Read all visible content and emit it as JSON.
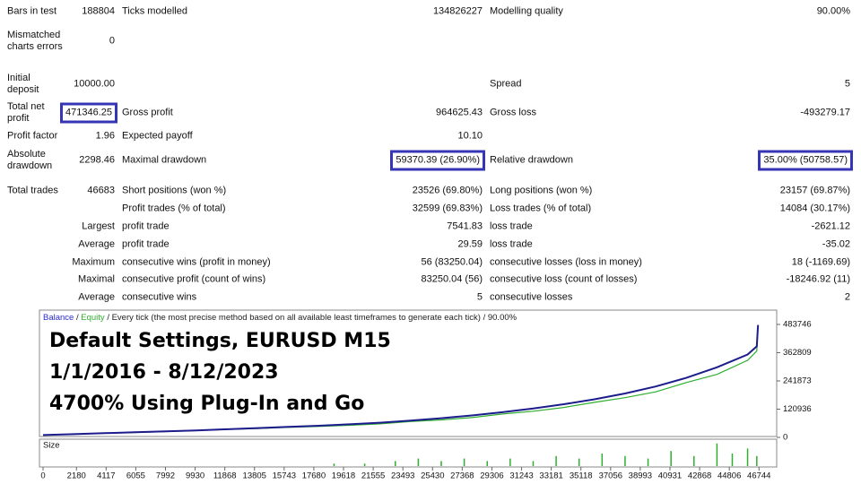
{
  "stats": {
    "rows": [
      {
        "a_label": "Bars in test",
        "a_value": "188804",
        "b_label": "Ticks modelled",
        "b_value": "134826227",
        "c_label": "Modelling quality",
        "c_value": "90.00%"
      },
      {
        "a_label": "Mismatched charts errors",
        "a_value": "0"
      },
      {
        "a_label": "Initial deposit",
        "a_value": "10000.00",
        "c_label": "Spread",
        "c_value": "5"
      },
      {
        "a_label": "Total net profit",
        "a_value": "471346.25",
        "b_label": "Gross profit",
        "b_value": "964625.43",
        "c_label": "Gross loss",
        "c_value": "-493279.17",
        "boxed": [
          "a_value"
        ]
      },
      {
        "a_label": "Profit factor",
        "a_value": "1.96",
        "b_label": "Expected payoff",
        "b_value": "10.10"
      },
      {
        "a_label": "Absolute drawdown",
        "a_value": "2298.46",
        "b_label": "Maximal drawdown",
        "b_value": "59370.39 (26.90%)",
        "c_label": "Relative drawdown",
        "c_value": "35.00% (50758.57)",
        "boxed": [
          "b_value",
          "c_value"
        ]
      },
      {
        "a_label": "Total trades",
        "a_value": "46683",
        "b_label": "Short positions (won %)",
        "b_value": "23526 (69.80%)",
        "c_label": "Long positions (won %)",
        "c_value": "23157 (69.87%)"
      },
      {
        "b_label": "Profit trades (% of total)",
        "b_value": "32599 (69.83%)",
        "c_label": "Loss trades (% of total)",
        "c_value": "14084 (30.17%)"
      },
      {
        "a_label": "Largest",
        "b_label": "profit trade",
        "b_value": "7541.83",
        "c_label": "loss trade",
        "c_value": "-2621.12"
      },
      {
        "a_label": "Average",
        "b_label": "profit trade",
        "b_value": "29.59",
        "c_label": "loss trade",
        "c_value": "-35.02"
      },
      {
        "a_label": "Maximum",
        "b_label": "consecutive wins (profit in money)",
        "b_value": "56 (83250.04)",
        "c_label": "consecutive losses (loss in money)",
        "c_value": "18 (-1169.69)"
      },
      {
        "a_label": "Maximal",
        "b_label": "consecutive profit (count of wins)",
        "b_value": "83250.04 (56)",
        "c_label": "consecutive loss (count of losses)",
        "c_value": "-18246.92 (11)"
      },
      {
        "a_label": "Average",
        "b_label": "consecutive wins",
        "b_value": "5",
        "c_label": "consecutive losses",
        "c_value": "2"
      }
    ]
  },
  "chart_data": {
    "type": "line",
    "separator": "/",
    "subtitle": "Every tick (the most precise method based on all available least timeframes to generate each tick)",
    "quality": "90.00%",
    "overlay_text": [
      "Default Settings, EURUSD M15",
      "1/1/2016 - 8/12/2023",
      "4700% Using Plug-In and Go"
    ],
    "x": [
      0,
      2000,
      4000,
      6000,
      8000,
      10000,
      12000,
      14000,
      16000,
      18000,
      20000,
      22000,
      24000,
      26000,
      28000,
      30000,
      32000,
      34000,
      36000,
      38000,
      40000,
      42000,
      44000,
      46000,
      46600,
      46683
    ],
    "series": [
      {
        "name": "Balance",
        "color": "#1c1c8c",
        "values": [
          10000,
          14000,
          18000,
          22000,
          26000,
          30000,
          35000,
          40000,
          45000,
          50000,
          56000,
          63000,
          72000,
          82000,
          94000,
          108000,
          124000,
          142000,
          163000,
          188000,
          218000,
          255000,
          300000,
          355000,
          390000,
          481346
        ]
      },
      {
        "name": "Equity",
        "color": "#2fae2f",
        "values": [
          10000,
          13500,
          17500,
          21000,
          25000,
          29000,
          34000,
          38000,
          43000,
          47000,
          52000,
          58000,
          68000,
          75000,
          85000,
          100000,
          112000,
          128000,
          150000,
          170000,
          195000,
          235000,
          270000,
          330000,
          370000,
          475000
        ]
      }
    ],
    "xlim": [
      0,
      47900
    ],
    "ylim": [
      0,
      545000
    ],
    "xticks": [
      0,
      2180,
      4117,
      6055,
      7992,
      9930,
      11868,
      13805,
      15743,
      17680,
      19618,
      21555,
      23493,
      25430,
      27368,
      29306,
      31243,
      33181,
      35118,
      37056,
      38993,
      40931,
      42868,
      44806,
      46744
    ],
    "yticks": [
      0,
      120936,
      241873,
      362809,
      483746
    ],
    "size_panel": {
      "label": "Size",
      "color": "#2fae2f",
      "ylim": [
        0,
        10
      ],
      "x": [
        19000,
        21000,
        23000,
        24500,
        26000,
        27500,
        29000,
        30500,
        32000,
        33500,
        35000,
        36500,
        38000,
        39500,
        41000,
        42500,
        44000,
        45000,
        46000,
        46600
      ],
      "values": [
        1,
        1,
        2,
        3,
        2,
        3,
        2,
        3,
        2,
        4,
        3,
        5,
        4,
        3,
        6,
        4,
        9,
        5,
        7,
        4
      ]
    }
  }
}
